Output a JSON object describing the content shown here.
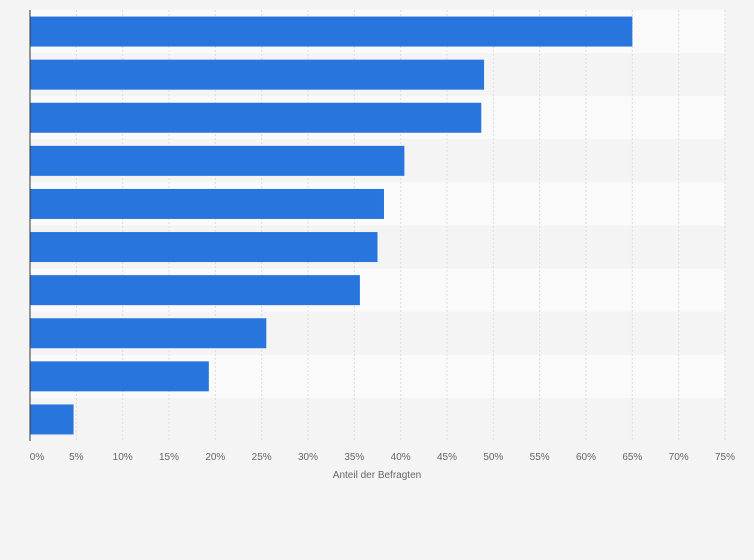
{
  "chart_data": {
    "type": "bar",
    "orientation": "horizontal",
    "categories": [
      "",
      "",
      "",
      "",
      "",
      "",
      "",
      "",
      "",
      ""
    ],
    "values": [
      65,
      49,
      48.7,
      40.4,
      38.2,
      37.5,
      35.6,
      25.5,
      19.3,
      4.7
    ],
    "xlabel": "Anteil der Befragten",
    "ylabel": "",
    "xlim": [
      0,
      75
    ],
    "xticks": [
      0,
      5,
      10,
      15,
      20,
      25,
      30,
      35,
      40,
      45,
      50,
      55,
      60,
      65,
      70,
      75
    ],
    "tick_labels": [
      "0%",
      "5%",
      "10%",
      "15%",
      "20%",
      "25%",
      "30%",
      "35%",
      "40%",
      "45%",
      "50%",
      "55%",
      "60%",
      "65%",
      "70%",
      "75%"
    ],
    "grid": true,
    "legend": "none",
    "colors": {
      "bar": "#2876dd",
      "band_light": "#fafafa",
      "band_dark": "#f4f4f4",
      "grid": "#dcdcdc",
      "axis": "#333333",
      "text": "#666666",
      "page_background": "#f4f4f4"
    }
  }
}
